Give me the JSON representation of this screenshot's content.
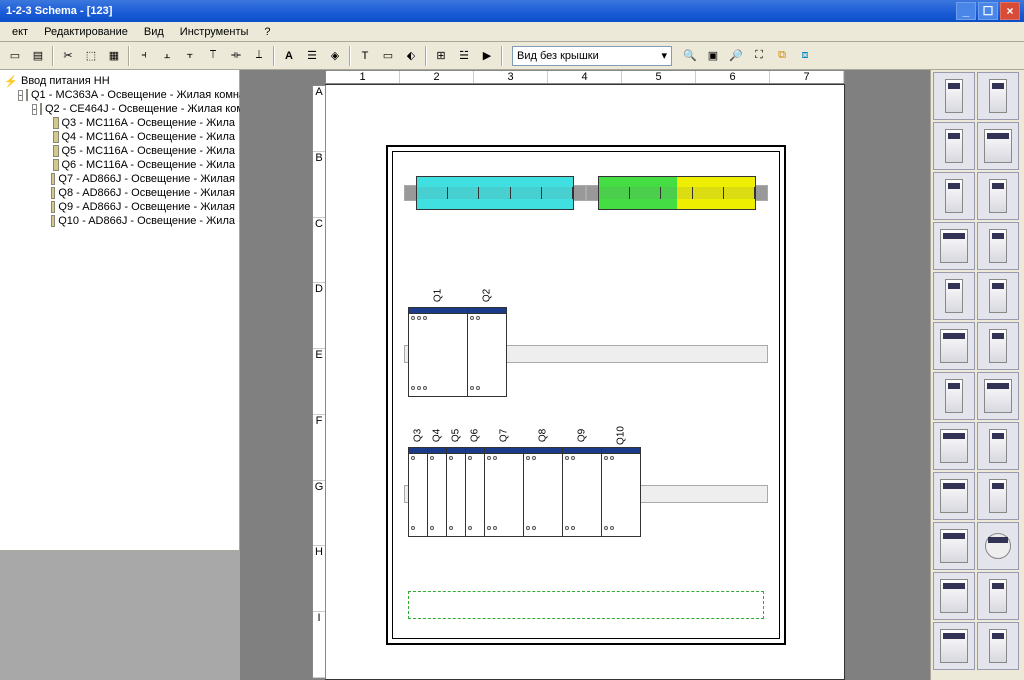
{
  "title": "1-2-3 Schema - [123]",
  "menu": [
    "ект",
    "Редактирование",
    "Вид",
    "Инструменты",
    "?"
  ],
  "view_mode": "Вид без крышки",
  "tree": {
    "root": "Ввод питания НН",
    "items": [
      {
        "id": "Q1",
        "label": "Q1 - MC363A - Освещение - Жилая комна",
        "indent": 1,
        "exp": "-"
      },
      {
        "id": "Q2",
        "label": "Q2 - CE464J - Освещение - Жилая ком",
        "indent": 2,
        "exp": "-"
      },
      {
        "id": "Q3",
        "label": "Q3 - MC116A - Освещение - Жила",
        "indent": 3
      },
      {
        "id": "Q4",
        "label": "Q4 - MC116A - Освещение - Жила",
        "indent": 3
      },
      {
        "id": "Q5",
        "label": "Q5 - MC116A - Освещение - Жила",
        "indent": 3
      },
      {
        "id": "Q6",
        "label": "Q6 - MC116A - Освещение - Жила",
        "indent": 3
      },
      {
        "id": "Q7",
        "label": "Q7 - AD866J - Освещение - Жилая",
        "indent": 3
      },
      {
        "id": "Q8",
        "label": "Q8 - AD866J - Освещение - Жилая",
        "indent": 3
      },
      {
        "id": "Q9",
        "label": "Q9 - AD866J - Освещение - Жилая",
        "indent": 3
      },
      {
        "id": "Q10",
        "label": "Q10 - AD866J - Освещение - Жила",
        "indent": 3
      }
    ]
  },
  "ruler_h": [
    "1",
    "2",
    "3",
    "4",
    "5",
    "6",
    "7"
  ],
  "ruler_v": [
    "A",
    "B",
    "C",
    "D",
    "E",
    "F",
    "G",
    "H",
    "I"
  ],
  "row1_labels": [
    "Q1",
    "Q2"
  ],
  "row2_labels": [
    "Q3",
    "Q4",
    "Q5",
    "Q6",
    "Q7",
    "Q8",
    "Q9",
    "Q10"
  ],
  "colors": {
    "titlebar": "#1f5fd8",
    "neutral": "#40e0e0",
    "earth_g": "#44dd44",
    "earth_y": "#eeee00",
    "device_cap": "#1a3a8a",
    "canvas_bg": "#808080",
    "spare": "#33aa33"
  }
}
